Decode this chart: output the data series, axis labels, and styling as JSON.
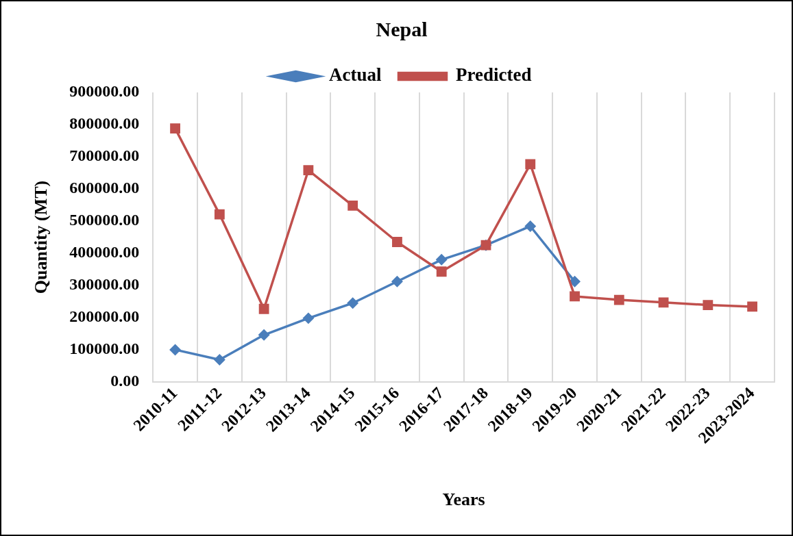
{
  "chart_data": {
    "type": "line",
    "title": "Nepal",
    "xlabel": "Years",
    "ylabel": "Quantity (MT)",
    "categories": [
      "2010-11",
      "2011-12",
      "2012-13",
      "2013-14",
      "2014-15",
      "2015-16",
      "2016-17",
      "2017-18",
      "2018-19",
      "2019-20",
      "2020-21",
      "2021-22",
      "2022-23",
      "2023-2024"
    ],
    "series": [
      {
        "name": "Actual",
        "color": "#4a7ebb",
        "marker": "diamond",
        "values": [
          100000,
          69000,
          146000,
          198000,
          245000,
          312000,
          380000,
          425000,
          484000,
          312000,
          null,
          null,
          null,
          null
        ]
      },
      {
        "name": "Predicted",
        "color": "#c0504d",
        "marker": "square",
        "values": [
          788000,
          521000,
          227000,
          658000,
          548000,
          435000,
          343000,
          425000,
          677000,
          266000,
          255000,
          247000,
          239000,
          234000
        ]
      }
    ],
    "ylim": [
      0,
      900000
    ],
    "yticks": [
      {
        "value": 0,
        "label": "0.00"
      },
      {
        "value": 100000,
        "label": "100000.00"
      },
      {
        "value": 200000,
        "label": "200000.00"
      },
      {
        "value": 300000,
        "label": "300000.00"
      },
      {
        "value": 400000,
        "label": "400000.00"
      },
      {
        "value": 500000,
        "label": "500000.00"
      },
      {
        "value": 600000,
        "label": "600000.00"
      },
      {
        "value": 700000,
        "label": "700000.00"
      },
      {
        "value": 800000,
        "label": "800000.00"
      },
      {
        "value": 900000,
        "label": "900000.00"
      }
    ],
    "grid": "x",
    "legend": "top",
    "line_style": "solid"
  }
}
